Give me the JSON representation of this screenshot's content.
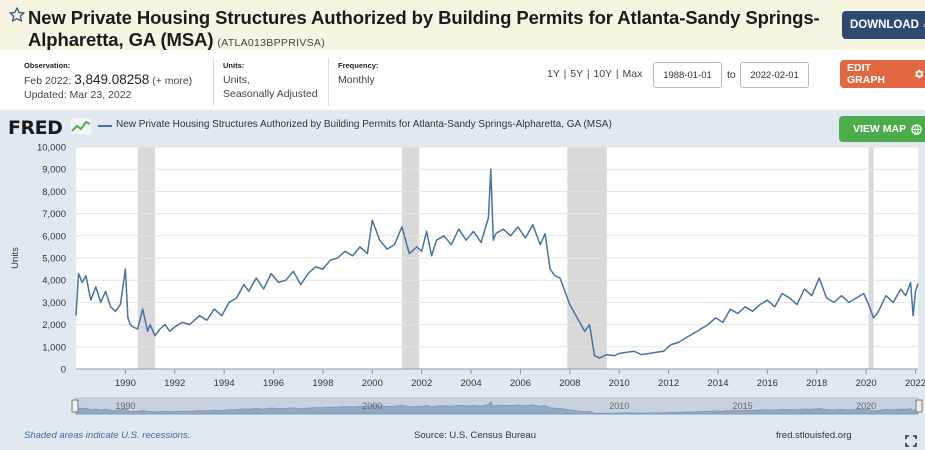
{
  "header": {
    "title": "New Private Housing Structures Authorized by Building Permits for Atlanta-Sandy Springs-Alpharetta, GA (MSA)",
    "series_id": "(ATLA013BPPRIVSA)",
    "download_label": "DOWNLOAD",
    "star_icon": "star-outline-icon",
    "download_icon": "download-icon"
  },
  "meta": {
    "observation_label": "Observation:",
    "observation_date": "Feb 2022:",
    "observation_value": "3,849.08258",
    "observation_more": "(+ more)",
    "updated": "Updated: Mar 23, 2022",
    "units_label": "Units:",
    "units_value": "Units,",
    "units_value2": "Seasonally Adjusted",
    "frequency_label": "Frequency:",
    "frequency_value": "Monthly"
  },
  "controls": {
    "range_1y": "1Y",
    "range_5y": "5Y",
    "range_10y": "10Y",
    "range_max": "Max",
    "sep": "|",
    "start_date": "1988-01-01",
    "to_label": "to",
    "end_date": "2022-02-01",
    "edit_label": "EDIT GRAPH",
    "edit_icon": "gear-icon"
  },
  "graph_header": {
    "logo": "FRED",
    "legend": "New Private Housing Structures Authorized by Building Permits for Atlanta-Sandy Springs-Alpharetta, GA (MSA)",
    "view_map_label": "VIEW MAP",
    "map_icon": "globe-icon"
  },
  "footer": {
    "shaded": "Shaded areas indicate U.S. recessions.",
    "source": "Source: U.S. Census Bureau",
    "site": "fred.stlouisfed.org",
    "expand_icon": "expand-icon"
  },
  "colors": {
    "line": "#4572a7",
    "recession": "#d9d9d9",
    "background": "#e1e9f0",
    "header_bg": "#f7f5e1",
    "download_btn": "#2f4a70",
    "edit_btn": "#e0673f",
    "map_btn": "#4cab4a"
  },
  "chart_data": {
    "type": "line",
    "title": "",
    "xlabel": "",
    "ylabel": "Units",
    "xlim": [
      1988.0,
      2022.1
    ],
    "ylim": [
      0,
      10000
    ],
    "grid": true,
    "y_ticks": [
      0,
      1000,
      2000,
      3000,
      4000,
      5000,
      6000,
      7000,
      8000,
      9000,
      10000
    ],
    "y_tick_labels": [
      "0",
      "1,000",
      "2,000",
      "3,000",
      "4,000",
      "5,000",
      "6,000",
      "7,000",
      "8,000",
      "9,000",
      "10,000"
    ],
    "x_ticks": [
      1990,
      1992,
      1994,
      1996,
      1998,
      2000,
      2002,
      2004,
      2006,
      2008,
      2010,
      2012,
      2014,
      2016,
      2018,
      2020,
      2022
    ],
    "x_tick_labels": [
      "1990",
      "1992",
      "1994",
      "1996",
      "1998",
      "2000",
      "2002",
      "2004",
      "2006",
      "2008",
      "2010",
      "2012",
      "2014",
      "2016",
      "2018",
      "2020",
      "2022"
    ],
    "recessions": [
      [
        1990.5,
        1991.2
      ],
      [
        2001.2,
        2001.9
      ],
      [
        2007.9,
        2009.5
      ],
      [
        2020.1,
        2020.3
      ]
    ],
    "navigator_labels": [
      "1990",
      "2000",
      "2010",
      "2015",
      "2020"
    ],
    "series": [
      {
        "name": "New Private Housing Structures Authorized by Building Permits for Atlanta-Sandy Springs-Alpharetta, GA (MSA)",
        "x": [
          1988.0,
          1988.1,
          1988.25,
          1988.4,
          1988.6,
          1988.8,
          1989.0,
          1989.2,
          1989.4,
          1989.6,
          1989.8,
          1990.0,
          1990.1,
          1990.2,
          1990.3,
          1990.5,
          1990.7,
          1990.9,
          1991.0,
          1991.2,
          1991.4,
          1991.6,
          1991.8,
          1992.0,
          1992.3,
          1992.6,
          1993.0,
          1993.3,
          1993.6,
          1993.9,
          1994.2,
          1994.5,
          1994.8,
          1995.0,
          1995.3,
          1995.6,
          1995.9,
          1996.2,
          1996.5,
          1996.8,
          1997.1,
          1997.4,
          1997.7,
          1998.0,
          1998.3,
          1998.6,
          1998.9,
          1999.2,
          1999.5,
          1999.8,
          2000.0,
          2000.3,
          2000.6,
          2000.9,
          2001.2,
          2001.5,
          2001.8,
          2002.0,
          2002.2,
          2002.4,
          2002.6,
          2002.9,
          2003.2,
          2003.5,
          2003.8,
          2004.1,
          2004.4,
          2004.7,
          2004.8,
          2004.9,
          2005.0,
          2005.3,
          2005.6,
          2005.9,
          2006.2,
          2006.5,
          2006.8,
          2007.0,
          2007.2,
          2007.4,
          2007.6,
          2007.8,
          2008.0,
          2008.2,
          2008.4,
          2008.6,
          2008.8,
          2009.0,
          2009.2,
          2009.5,
          2009.8,
          2010.0,
          2010.3,
          2010.6,
          2010.9,
          2011.2,
          2011.5,
          2011.8,
          2012.1,
          2012.4,
          2012.7,
          2013.0,
          2013.3,
          2013.6,
          2013.9,
          2014.2,
          2014.5,
          2014.8,
          2015.1,
          2015.4,
          2015.7,
          2016.0,
          2016.3,
          2016.6,
          2016.9,
          2017.2,
          2017.5,
          2017.8,
          2018.1,
          2018.4,
          2018.7,
          2019.0,
          2019.3,
          2019.6,
          2019.9,
          2020.1,
          2020.3,
          2020.5,
          2020.8,
          2021.1,
          2021.4,
          2021.6,
          2021.8,
          2021.9,
          2022.0,
          2022.1
        ],
        "values": [
          2400,
          4300,
          3900,
          4200,
          3100,
          3700,
          3000,
          3500,
          2800,
          2600,
          2900,
          4500,
          2300,
          2000,
          1900,
          1800,
          2700,
          1700,
          2000,
          1500,
          1800,
          2000,
          1700,
          1900,
          2100,
          2000,
          2400,
          2200,
          2700,
          2400,
          3000,
          3200,
          3800,
          3500,
          4100,
          3600,
          4300,
          3900,
          4000,
          4400,
          3800,
          4300,
          4600,
          4500,
          4900,
          5000,
          5300,
          5100,
          5500,
          5200,
          6700,
          5800,
          5400,
          5600,
          6400,
          5200,
          5500,
          5300,
          6200,
          5100,
          5800,
          6000,
          5600,
          6300,
          5800,
          6200,
          5700,
          6800,
          9000,
          5800,
          6100,
          6300,
          6000,
          6400,
          5900,
          6500,
          5600,
          6100,
          4500,
          4200,
          4100,
          3500,
          2900,
          2500,
          2100,
          1700,
          2000,
          600,
          500,
          650,
          600,
          700,
          750,
          800,
          650,
          700,
          750,
          800,
          1100,
          1200,
          1400,
          1600,
          1800,
          2000,
          2300,
          2100,
          2700,
          2500,
          2800,
          2600,
          2900,
          3100,
          2800,
          3400,
          3200,
          2900,
          3600,
          3300,
          4100,
          3200,
          3000,
          3300,
          3000,
          3200,
          3400,
          2900,
          2300,
          2600,
          3300,
          3000,
          3600,
          3300,
          3900,
          2400,
          3500,
          3849
        ]
      }
    ]
  }
}
